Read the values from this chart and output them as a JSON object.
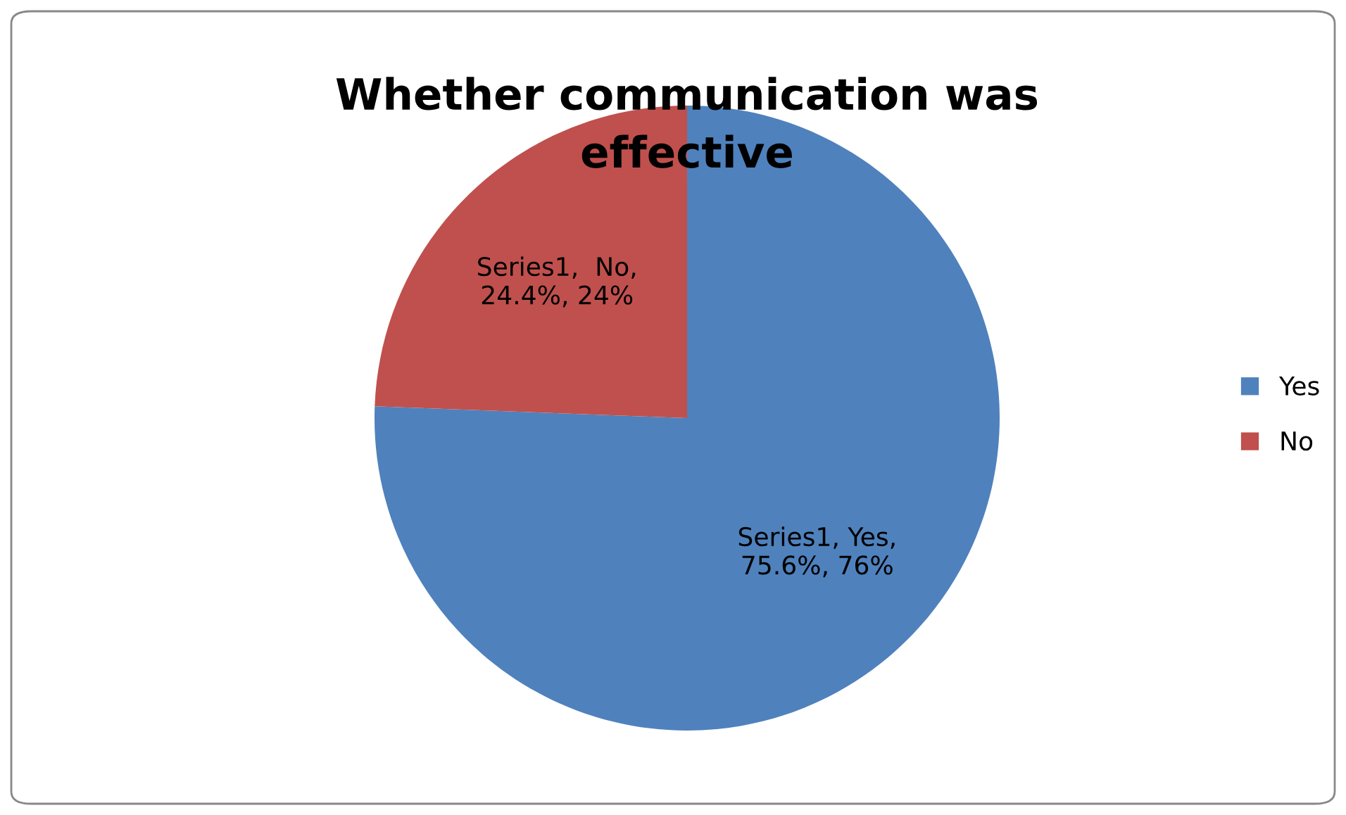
{
  "chart_data": {
    "type": "pie",
    "title": "Whether communication was\neffective",
    "categories": [
      "Yes",
      "No"
    ],
    "values": [
      75.6,
      24.4
    ],
    "colors": [
      "#4f81bd",
      "#c0504d"
    ],
    "value_labels": [
      "Series1, Yes,\n75.6%, 76%",
      "Series1,  No,\n24.4%, 24%"
    ],
    "legend": "right"
  }
}
